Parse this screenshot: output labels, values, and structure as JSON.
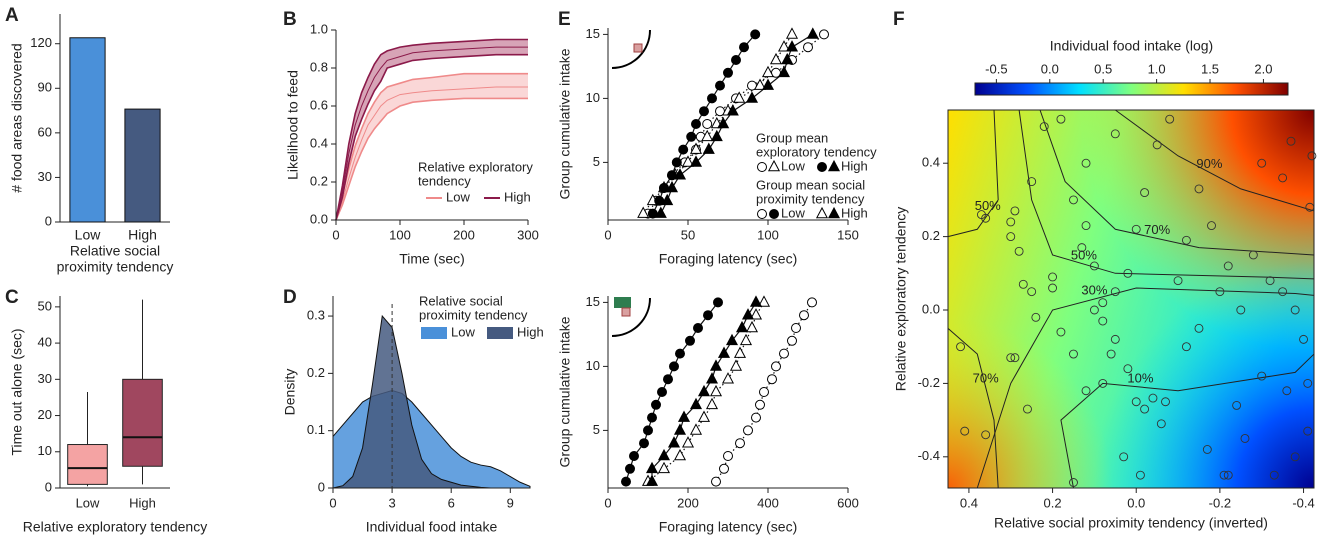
{
  "chart_data": [
    {
      "panel": "A",
      "type": "bar",
      "categories": [
        "Low",
        "High"
      ],
      "values": [
        124,
        76
      ],
      "colors": [
        "#4a90d9",
        "#455a80"
      ],
      "ylim": [
        0,
        140
      ],
      "yticks": [
        0,
        30,
        60,
        90,
        120
      ],
      "ylabel": "# food areas discovered",
      "xlabel": [
        "Relative social",
        "proximity tendency"
      ]
    },
    {
      "panel": "B",
      "type": "line",
      "x": [
        0,
        10,
        20,
        30,
        40,
        50,
        60,
        70,
        80,
        100,
        120,
        150,
        200,
        250,
        300
      ],
      "series": [
        {
          "name": "Low",
          "color": "#ef8a8a",
          "band_color": "#f8caca",
          "values": [
            0,
            0.1,
            0.22,
            0.33,
            0.42,
            0.5,
            0.55,
            0.6,
            0.63,
            0.66,
            0.67,
            0.68,
            0.69,
            0.7,
            0.7
          ],
          "lower": [
            0,
            0.08,
            0.18,
            0.28,
            0.36,
            0.43,
            0.48,
            0.52,
            0.56,
            0.6,
            0.62,
            0.63,
            0.64,
            0.64,
            0.64
          ],
          "upper": [
            0,
            0.13,
            0.27,
            0.39,
            0.48,
            0.56,
            0.62,
            0.67,
            0.7,
            0.72,
            0.74,
            0.75,
            0.77,
            0.77,
            0.77
          ]
        },
        {
          "name": "High",
          "color": "#8b1a4a",
          "band_color": "#c9869f",
          "values": [
            0,
            0.15,
            0.35,
            0.5,
            0.6,
            0.68,
            0.75,
            0.8,
            0.84,
            0.86,
            0.88,
            0.89,
            0.9,
            0.91,
            0.91
          ],
          "lower": [
            0,
            0.12,
            0.3,
            0.44,
            0.53,
            0.61,
            0.68,
            0.73,
            0.8,
            0.82,
            0.84,
            0.85,
            0.86,
            0.87,
            0.87
          ],
          "upper": [
            0,
            0.18,
            0.4,
            0.56,
            0.67,
            0.75,
            0.82,
            0.87,
            0.89,
            0.91,
            0.92,
            0.93,
            0.94,
            0.95,
            0.95
          ]
        }
      ],
      "xlim": [
        0,
        300
      ],
      "xticks": [
        0,
        100,
        200,
        300
      ],
      "ylim": [
        0,
        1
      ],
      "yticks": [
        {
          "value": 0,
          "label": "0.0"
        },
        0.2,
        0.4,
        0.6,
        0.8,
        {
          "value": 1,
          "label": "1.0"
        }
      ],
      "xlabel": "Time (sec)",
      "ylabel": "Likelihood to feed",
      "legend_title": [
        "Relative exploratory",
        "tendency"
      ],
      "legend": "bottom-right"
    },
    {
      "panel": "C",
      "type": "box",
      "categories": [
        "Low",
        "High"
      ],
      "colors": [
        "#f4a3a3",
        "#a0475f"
      ],
      "boxes": [
        {
          "low": 0.5,
          "q1": 1,
          "median": 5.5,
          "q3": 12,
          "high": 26.5
        },
        {
          "low": 1,
          "q1": 6,
          "median": 14,
          "q3": 30,
          "high": 52
        }
      ],
      "ylim": [
        0,
        53
      ],
      "yticks": [
        0,
        10,
        20,
        30,
        40,
        50
      ],
      "ylabel": "Time out alone (sec)",
      "xlabel": "Relative exploratory tendency"
    },
    {
      "panel": "D",
      "type": "density",
      "x": [
        0,
        0.5,
        1,
        1.5,
        2,
        2.5,
        3,
        3.5,
        4,
        4.5,
        5,
        5.5,
        6,
        6.5,
        7,
        7.5,
        8,
        8.5,
        9,
        9.5,
        10
      ],
      "series": [
        {
          "name": "Low",
          "color": "#4a90d9",
          "values": [
            0.09,
            0.11,
            0.13,
            0.15,
            0.16,
            0.165,
            0.17,
            0.165,
            0.15,
            0.13,
            0.11,
            0.09,
            0.07,
            0.055,
            0.045,
            0.04,
            0.037,
            0.03,
            0.02,
            0.01,
            0.003
          ]
        },
        {
          "name": "High",
          "color": "#455a80",
          "values": [
            0,
            0.004,
            0.02,
            0.07,
            0.18,
            0.3,
            0.28,
            0.2,
            0.11,
            0.05,
            0.025,
            0.015,
            0.01,
            0.005,
            0.003,
            0.001,
            0,
            0,
            0,
            0,
            0
          ]
        }
      ],
      "vline": 3,
      "xlim": [
        0,
        10
      ],
      "xticks": [
        0,
        3,
        6,
        9
      ],
      "ylim": [
        0,
        0.335
      ],
      "yticks": [
        0,
        0.1,
        0.2,
        0.3
      ],
      "xlabel": "Individual food intake",
      "ylabel": "Density",
      "legend_title": [
        "Relative social",
        "proximity tendency"
      ]
    },
    {
      "panel": "E",
      "type": "latency",
      "y": [
        1,
        2,
        3,
        4,
        5,
        6,
        7,
        8,
        9,
        10,
        11,
        12,
        13,
        14,
        15
      ],
      "series": [
        {
          "marker": "circle-open",
          "dotted": true,
          "x": [
            25,
            30,
            35,
            40,
            48,
            55,
            58,
            62,
            70,
            80,
            90,
            105,
            115,
            125,
            135
          ]
        },
        {
          "marker": "triangle-open",
          "dotted": true,
          "x": [
            22,
            28,
            35,
            42,
            50,
            55,
            62,
            68,
            75,
            82,
            95,
            100,
            105,
            110,
            115
          ]
        },
        {
          "marker": "circle-filled",
          "dotted": false,
          "x": [
            28,
            32,
            35,
            40,
            43,
            47,
            52,
            55,
            60,
            65,
            70,
            75,
            80,
            85,
            92
          ]
        },
        {
          "marker": "triangle-filled",
          "dotted": false,
          "x": [
            33,
            37,
            40,
            45,
            55,
            63,
            68,
            72,
            78,
            90,
            100,
            110,
            112,
            115,
            128
          ]
        }
      ],
      "xlim": [
        0,
        150
      ],
      "xticks": [
        0,
        50,
        100,
        150
      ],
      "ylim": [
        0.5,
        15.5
      ],
      "yticks": [
        5,
        10,
        15
      ],
      "xlabel": "Foraging latency (sec)",
      "ylabel": "Group cumulative intake",
      "legend": [
        {
          "title": [
            "Group mean",
            "exploratory tendency"
          ],
          "items": [
            {
              "label": "Low",
              "markers": [
                "circle-open",
                "triangle-open"
              ]
            },
            {
              "label": "High",
              "markers": [
                "circle-filled",
                "triangle-filled"
              ]
            }
          ]
        },
        {
          "title": [
            "Group mean social",
            "proximity tendency"
          ],
          "items": [
            {
              "label": "Low",
              "markers": [
                "circle-open",
                "circle-filled"
              ]
            },
            {
              "label": "High",
              "markers": [
                "triangle-open",
                "triangle-filled"
              ]
            }
          ]
        }
      ]
    },
    {
      "type": "latency",
      "y": [
        1,
        2,
        3,
        4,
        5,
        6,
        7,
        8,
        9,
        10,
        11,
        12,
        13,
        14,
        15
      ],
      "series": [
        {
          "marker": "circle-open",
          "dotted": true,
          "x": [
            270,
            290,
            300,
            330,
            350,
            370,
            380,
            390,
            410,
            420,
            440,
            460,
            470,
            490,
            510
          ]
        },
        {
          "marker": "triangle-open",
          "dotted": true,
          "x": [
            100,
            140,
            180,
            200,
            220,
            240,
            260,
            270,
            300,
            320,
            330,
            345,
            360,
            370,
            390
          ]
        },
        {
          "marker": "circle-filled",
          "dotted": false,
          "x": [
            45,
            55,
            65,
            90,
            100,
            110,
            120,
            135,
            150,
            165,
            180,
            205,
            225,
            250,
            275
          ]
        },
        {
          "marker": "triangle-filled",
          "dotted": false,
          "x": [
            110,
            110,
            140,
            165,
            180,
            190,
            220,
            240,
            260,
            270,
            290,
            310,
            335,
            350,
            370
          ]
        }
      ],
      "xlim": [
        0,
        600
      ],
      "xticks": [
        0,
        200,
        400,
        600
      ],
      "ylim": [
        0.5,
        15.5
      ],
      "yticks": [
        5,
        10,
        15
      ],
      "xlabel": "Foraging latency (sec)",
      "ylabel": "Group cumulative intake"
    },
    {
      "panel": "F",
      "type": "heatmap",
      "colorbar_title": "Individual food intake (log)",
      "colormap": [
        "#00008f",
        "#0050ff",
        "#00dfff",
        "#7fff7f",
        "#ffdf00",
        "#ff5000",
        "#7f0000"
      ],
      "colorbar_lim": [
        -0.7,
        2.23
      ],
      "colorbar_ticks": [
        -0.5,
        {
          "value": 0,
          "label": "0.0"
        },
        0.5,
        {
          "value": 1,
          "label": "1.0"
        },
        1.5,
        {
          "value": 2,
          "label": "2.0"
        }
      ],
      "xlim": [
        0.45,
        -0.425
      ],
      "xticks": [
        0.4,
        0.2,
        {
          "value": 0,
          "label": "0.0"
        },
        -0.2,
        -0.4
      ],
      "ylim": [
        -0.485,
        0.545
      ],
      "yticks": [
        -0.4,
        -0.2,
        {
          "value": 0,
          "label": "0.0"
        },
        0.2,
        0.4
      ],
      "xlabel": "Relative social proximity tendency (inverted)",
      "ylabel": "Relative exploratory tendency",
      "contours": [
        {
          "label": "90%",
          "x": [
            0.05,
            -0.1,
            -0.25,
            -0.425
          ],
          "y": [
            0.545,
            0.42,
            0.33,
            0.27
          ]
        },
        {
          "label": "70%",
          "x": [
            0.23,
            0.17,
            0.05,
            -0.15,
            -0.425
          ],
          "y": [
            0.545,
            0.35,
            0.22,
            0.17,
            0.15
          ]
        },
        {
          "label": "50%",
          "x": [
            0.28,
            0.25,
            0.2,
            0.05,
            -0.3,
            -0.425
          ],
          "y": [
            0.545,
            0.3,
            0.15,
            0.1,
            0.09,
            0.085
          ]
        },
        {
          "label": "30%",
          "x": [
            0.38,
            0.3,
            0.2,
            0.0,
            -0.38,
            -0.425
          ],
          "y": [
            -0.485,
            -0.2,
            0.0,
            0.06,
            0.045,
            0.04
          ]
        },
        {
          "label": "10%",
          "x": [
            0.15,
            0.18,
            0.08,
            -0.1,
            -0.38,
            -0.425
          ],
          "y": [
            -0.485,
            -0.3,
            -0.2,
            -0.22,
            -0.17,
            -0.12
          ]
        },
        {
          "label": "50%",
          "x": [
            0.34,
            0.33,
            0.38,
            0.45
          ],
          "y": [
            0.545,
            0.3,
            0.22,
            0.2
          ]
        },
        {
          "label": "70%",
          "x": [
            0.45,
            0.38,
            0.34,
            0.33
          ],
          "y": [
            -0.05,
            -0.12,
            -0.3,
            -0.485
          ]
        }
      ],
      "points": {
        "x": [
          0.37,
          0.36,
          0.3,
          0.29,
          0.3,
          0.28,
          0.27,
          0.25,
          0.3,
          0.29,
          0.42,
          0.41,
          0.36,
          0.26,
          0.24,
          0.2,
          0.2,
          0.15,
          0.12,
          0.13,
          0.1,
          0.1,
          0.08,
          0.05,
          0.06,
          0.08,
          0.02,
          0.0,
          -0.02,
          -0.04,
          -0.06,
          -0.07,
          0.03,
          -0.01,
          0.15,
          0.08,
          0.05,
          0.02,
          0.0,
          -0.02,
          -0.05,
          -0.08,
          0.05,
          0.12,
          0.18,
          -0.12,
          -0.15,
          -0.18,
          -0.2,
          -0.22,
          -0.25,
          -0.28,
          -0.3,
          -0.35,
          -0.32,
          -0.35,
          -0.38,
          -0.4,
          -0.41,
          -0.36,
          -0.3,
          -0.24,
          -0.22,
          -0.21,
          -0.33,
          -0.41,
          -0.38,
          -0.12,
          -0.15,
          -0.1,
          -0.415,
          -0.42,
          -0.37,
          0.15,
          0.12,
          0.18,
          0.22,
          0.25,
          -0.26,
          -0.17
        ],
        "y": [
          0.26,
          0.25,
          0.24,
          0.27,
          0.2,
          0.16,
          0.07,
          0.05,
          -0.13,
          -0.13,
          -0.1,
          -0.33,
          -0.34,
          -0.27,
          -0.02,
          0.06,
          0.09,
          0.3,
          0.23,
          0.17,
          0.12,
          0.0,
          -0.03,
          -0.08,
          -0.12,
          -0.2,
          -0.16,
          -0.25,
          -0.27,
          -0.24,
          -0.31,
          -0.25,
          -0.4,
          -0.45,
          -0.47,
          0.02,
          0.05,
          0.1,
          0.22,
          0.32,
          0.45,
          0.52,
          0.48,
          0.4,
          0.52,
          0.19,
          0.33,
          0.23,
          0.05,
          0.12,
          0.0,
          0.15,
          0.4,
          0.36,
          0.08,
          0.05,
          0.0,
          -0.08,
          -0.2,
          -0.22,
          -0.18,
          -0.26,
          -0.45,
          -0.45,
          -0.45,
          -0.33,
          -0.4,
          -0.1,
          -0.05,
          0.08,
          0.28,
          0.42,
          0.46,
          -0.12,
          -0.22,
          -0.06,
          0.5,
          0.35,
          -0.35,
          -0.38
        ]
      }
    }
  ]
}
